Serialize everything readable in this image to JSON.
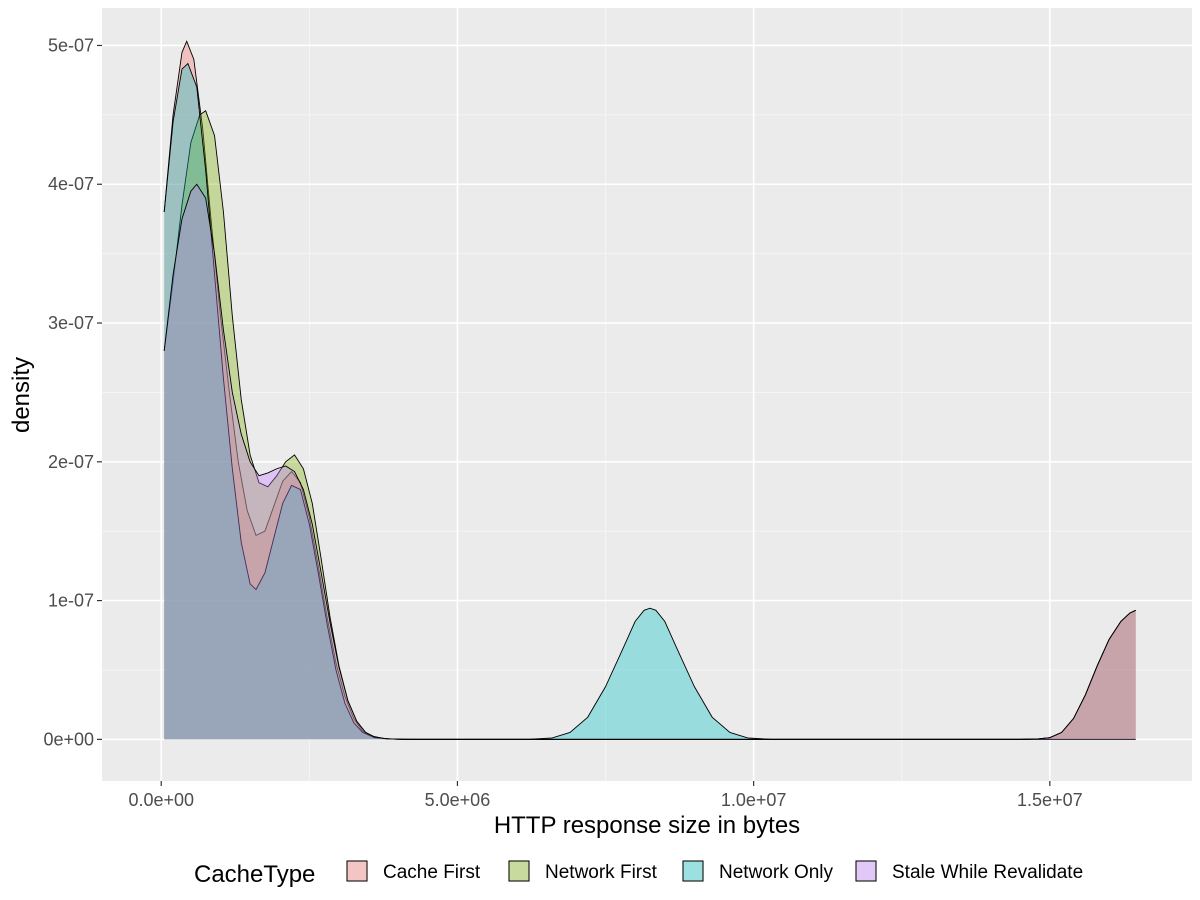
{
  "chart_data": {
    "type": "area",
    "subtype": "density",
    "title": "",
    "xlabel": "HTTP response size in bytes",
    "ylabel": "density",
    "xlim": [
      -1000000,
      17400000
    ],
    "ylim": [
      -3e-08,
      5.27e-07
    ],
    "x_ticks": [
      {
        "value": 0,
        "label": "0.0e+00"
      },
      {
        "value": 5000000,
        "label": "5.0e+06"
      },
      {
        "value": 10000000,
        "label": "1.0e+07"
      },
      {
        "value": 15000000,
        "label": "1.5e+07"
      }
    ],
    "y_ticks": [
      {
        "value": 0,
        "label": "0e+00"
      },
      {
        "value": 1e-07,
        "label": "1e-07"
      },
      {
        "value": 2e-07,
        "label": "2e-07"
      },
      {
        "value": 3e-07,
        "label": "3e-07"
      },
      {
        "value": 4e-07,
        "label": "4e-07"
      },
      {
        "value": 5e-07,
        "label": "5e-07"
      }
    ],
    "grid": true,
    "legend_title": "CacheType",
    "legend_position": "bottom",
    "series": [
      {
        "name": "Cache First",
        "color": "#F8766D",
        "points": [
          [
            50000,
            3.8e-07
          ],
          [
            200000,
            4.5e-07
          ],
          [
            350000,
            4.95e-07
          ],
          [
            430000,
            5.03e-07
          ],
          [
            550000,
            4.9e-07
          ],
          [
            700000,
            4.4e-07
          ],
          [
            850000,
            3.7e-07
          ],
          [
            1000000,
            3.05e-07
          ],
          [
            1150000,
            2.5e-07
          ],
          [
            1300000,
            2e-07
          ],
          [
            1450000,
            1.65e-07
          ],
          [
            1600000,
            1.47e-07
          ],
          [
            1750000,
            1.5e-07
          ],
          [
            1900000,
            1.68e-07
          ],
          [
            2050000,
            1.86e-07
          ],
          [
            2200000,
            1.93e-07
          ],
          [
            2350000,
            1.85e-07
          ],
          [
            2500000,
            1.6e-07
          ],
          [
            2650000,
            1.25e-07
          ],
          [
            2800000,
            8.8e-08
          ],
          [
            2950000,
            5.5e-08
          ],
          [
            3100000,
            3.1e-08
          ],
          [
            3250000,
            1.5e-08
          ],
          [
            3400000,
            6e-09
          ],
          [
            3550000,
            2.5e-09
          ],
          [
            3750000,
            6e-10
          ],
          [
            4000000,
            1e-10
          ],
          [
            4500000,
            0
          ],
          [
            14500000,
            0
          ],
          [
            14800000,
            3e-10
          ],
          [
            15000000,
            1.2e-09
          ],
          [
            15200000,
            5e-09
          ],
          [
            15400000,
            1.5e-08
          ],
          [
            15600000,
            3.2e-08
          ],
          [
            15800000,
            5.3e-08
          ],
          [
            16000000,
            7.2e-08
          ],
          [
            16200000,
            8.5e-08
          ],
          [
            16350000,
            9.1e-08
          ],
          [
            16450000,
            9.3e-08
          ]
        ]
      },
      {
        "name": "Network First",
        "color": "#7CAE00",
        "points": [
          [
            50000,
            2.8e-07
          ],
          [
            200000,
            3.3e-07
          ],
          [
            350000,
            3.85e-07
          ],
          [
            500000,
            4.3e-07
          ],
          [
            650000,
            4.5e-07
          ],
          [
            750000,
            4.53e-07
          ],
          [
            900000,
            4.35e-07
          ],
          [
            1050000,
            3.8e-07
          ],
          [
            1200000,
            3.05e-07
          ],
          [
            1350000,
            2.45e-07
          ],
          [
            1500000,
            2.05e-07
          ],
          [
            1650000,
            1.85e-07
          ],
          [
            1800000,
            1.82e-07
          ],
          [
            1950000,
            1.9e-07
          ],
          [
            2100000,
            2e-07
          ],
          [
            2250000,
            2.05e-07
          ],
          [
            2400000,
            1.95e-07
          ],
          [
            2550000,
            1.7e-07
          ],
          [
            2700000,
            1.3e-07
          ],
          [
            2850000,
            8.8e-08
          ],
          [
            3000000,
            5.3e-08
          ],
          [
            3150000,
            2.8e-08
          ],
          [
            3300000,
            1.3e-08
          ],
          [
            3450000,
            5e-09
          ],
          [
            3600000,
            1.8e-09
          ],
          [
            3800000,
            4e-10
          ],
          [
            4100000,
            0
          ],
          [
            4500000,
            0
          ],
          [
            14500000,
            0
          ],
          [
            14800000,
            3e-10
          ],
          [
            15000000,
            1.2e-09
          ],
          [
            15200000,
            5e-09
          ],
          [
            15400000,
            1.5e-08
          ],
          [
            15600000,
            3.2e-08
          ],
          [
            15800000,
            5.3e-08
          ],
          [
            16000000,
            7.2e-08
          ],
          [
            16200000,
            8.5e-08
          ],
          [
            16350000,
            9.1e-08
          ],
          [
            16450000,
            9.3e-08
          ]
        ]
      },
      {
        "name": "Network Only",
        "color": "#00BFC4",
        "points": [
          [
            50000,
            3.8e-07
          ],
          [
            200000,
            4.45e-07
          ],
          [
            350000,
            4.83e-07
          ],
          [
            450000,
            4.87e-07
          ],
          [
            600000,
            4.7e-07
          ],
          [
            750000,
            4.1e-07
          ],
          [
            900000,
            3.35e-07
          ],
          [
            1050000,
            2.6e-07
          ],
          [
            1200000,
            1.95e-07
          ],
          [
            1350000,
            1.42e-07
          ],
          [
            1500000,
            1.12e-07
          ],
          [
            1600000,
            1.08e-07
          ],
          [
            1750000,
            1.2e-07
          ],
          [
            1900000,
            1.45e-07
          ],
          [
            2050000,
            1.7e-07
          ],
          [
            2200000,
            1.83e-07
          ],
          [
            2350000,
            1.8e-07
          ],
          [
            2500000,
            1.55e-07
          ],
          [
            2650000,
            1.2e-07
          ],
          [
            2800000,
            8.3e-08
          ],
          [
            2950000,
            5e-08
          ],
          [
            3100000,
            2.6e-08
          ],
          [
            3250000,
            1.2e-08
          ],
          [
            3400000,
            5e-09
          ],
          [
            3600000,
            1.2e-09
          ],
          [
            3900000,
            2e-10
          ],
          [
            4300000,
            0
          ],
          [
            6200000,
            0
          ],
          [
            6600000,
            1e-09
          ],
          [
            6900000,
            5e-09
          ],
          [
            7200000,
            1.6e-08
          ],
          [
            7500000,
            3.8e-08
          ],
          [
            7800000,
            6.6e-08
          ],
          [
            8000000,
            8.5e-08
          ],
          [
            8150000,
            9.3e-08
          ],
          [
            8250000,
            9.45e-08
          ],
          [
            8350000,
            9.3e-08
          ],
          [
            8500000,
            8.5e-08
          ],
          [
            8700000,
            6.6e-08
          ],
          [
            9000000,
            3.8e-08
          ],
          [
            9300000,
            1.6e-08
          ],
          [
            9600000,
            5e-09
          ],
          [
            9900000,
            1e-09
          ],
          [
            10300000,
            0
          ],
          [
            16450000,
            0
          ]
        ]
      },
      {
        "name": "Stale While Revalidate",
        "color": "#C77CFF",
        "points": [
          [
            50000,
            2.8e-07
          ],
          [
            200000,
            3.35e-07
          ],
          [
            350000,
            3.75e-07
          ],
          [
            500000,
            3.95e-07
          ],
          [
            600000,
            4e-07
          ],
          [
            750000,
            3.9e-07
          ],
          [
            900000,
            3.5e-07
          ],
          [
            1050000,
            2.95e-07
          ],
          [
            1200000,
            2.5e-07
          ],
          [
            1350000,
            2.2e-07
          ],
          [
            1500000,
            2e-07
          ],
          [
            1650000,
            1.9e-07
          ],
          [
            1800000,
            1.92e-07
          ],
          [
            1950000,
            1.95e-07
          ],
          [
            2100000,
            1.97e-07
          ],
          [
            2250000,
            1.93e-07
          ],
          [
            2400000,
            1.8e-07
          ],
          [
            2550000,
            1.55e-07
          ],
          [
            2700000,
            1.2e-07
          ],
          [
            2850000,
            8.4e-08
          ],
          [
            3000000,
            5.2e-08
          ],
          [
            3150000,
            2.8e-08
          ],
          [
            3300000,
            1.3e-08
          ],
          [
            3450000,
            5e-09
          ],
          [
            3600000,
            1.8e-09
          ],
          [
            3800000,
            4e-10
          ],
          [
            4100000,
            0
          ],
          [
            4500000,
            0
          ],
          [
            14500000,
            0
          ],
          [
            14800000,
            3e-10
          ],
          [
            15000000,
            1.2e-09
          ],
          [
            15200000,
            5e-09
          ],
          [
            15400000,
            1.5e-08
          ],
          [
            15600000,
            3.2e-08
          ],
          [
            15800000,
            5.3e-08
          ],
          [
            16000000,
            7.2e-08
          ],
          [
            16200000,
            8.5e-08
          ],
          [
            16350000,
            9.1e-08
          ],
          [
            16450000,
            9.3e-08
          ]
        ]
      }
    ]
  }
}
